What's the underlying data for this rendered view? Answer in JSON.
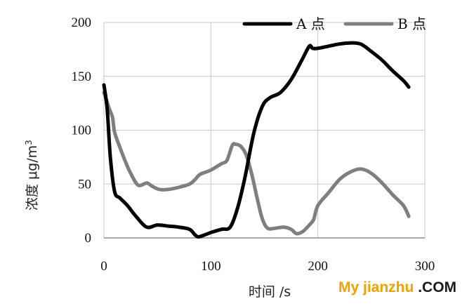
{
  "chart_data": {
    "type": "line",
    "title": "",
    "xlabel": "时间 /s",
    "ylabel_main": "浓度  μg/m",
    "ylabel_sup": "3",
    "xlim": [
      0,
      300
    ],
    "ylim": [
      0,
      200
    ],
    "xticks": [
      0,
      100,
      200,
      300
    ],
    "yticks": [
      0,
      50,
      100,
      150,
      200
    ],
    "grid": true,
    "legend_position": "top-right",
    "series": [
      {
        "name": "A 点",
        "color": "#000000",
        "x": [
          0,
          3,
          6,
          10,
          15,
          22,
          30,
          40,
          50,
          60,
          70,
          80,
          85,
          88,
          92,
          100,
          110,
          118,
          125,
          132,
          140,
          148,
          155,
          165,
          175,
          185,
          192,
          195,
          200,
          210,
          220,
          230,
          240,
          250,
          260,
          270,
          280,
          285
        ],
        "y": [
          142,
          120,
          75,
          43,
          37,
          30,
          20,
          10,
          12,
          11,
          10,
          8,
          3,
          1,
          2,
          5,
          8,
          10,
          28,
          57,
          97,
          122,
          130,
          135,
          147,
          165,
          178,
          176,
          176,
          178,
          180,
          181,
          180,
          173,
          165,
          155,
          146,
          140
        ]
      },
      {
        "name": "B 点",
        "color": "#7f7f7f",
        "x": [
          0,
          5,
          8,
          10,
          15,
          20,
          25,
          32,
          40,
          45,
          52,
          60,
          70,
          80,
          85,
          90,
          100,
          110,
          115,
          120,
          123,
          128,
          133,
          138,
          143,
          148,
          153,
          160,
          168,
          175,
          180,
          186,
          192,
          196,
          200,
          210,
          220,
          230,
          240,
          250,
          260,
          270,
          280,
          285
        ],
        "y": [
          135,
          120,
          112,
          98,
          84,
          71,
          60,
          49,
          51,
          48,
          45,
          45,
          47,
          50,
          54,
          59,
          63,
          69,
          72,
          86,
          87,
          85,
          77,
          60,
          38,
          18,
          9,
          9,
          10,
          8,
          4,
          6,
          12,
          17,
          30,
          42,
          54,
          61,
          64,
          60,
          51,
          40,
          30,
          20
        ]
      }
    ]
  },
  "watermark": {
    "part1": "My jianzhu ",
    "part2": ".COM",
    "color1": "#f2a100",
    "color2": "#1a1a1a"
  }
}
